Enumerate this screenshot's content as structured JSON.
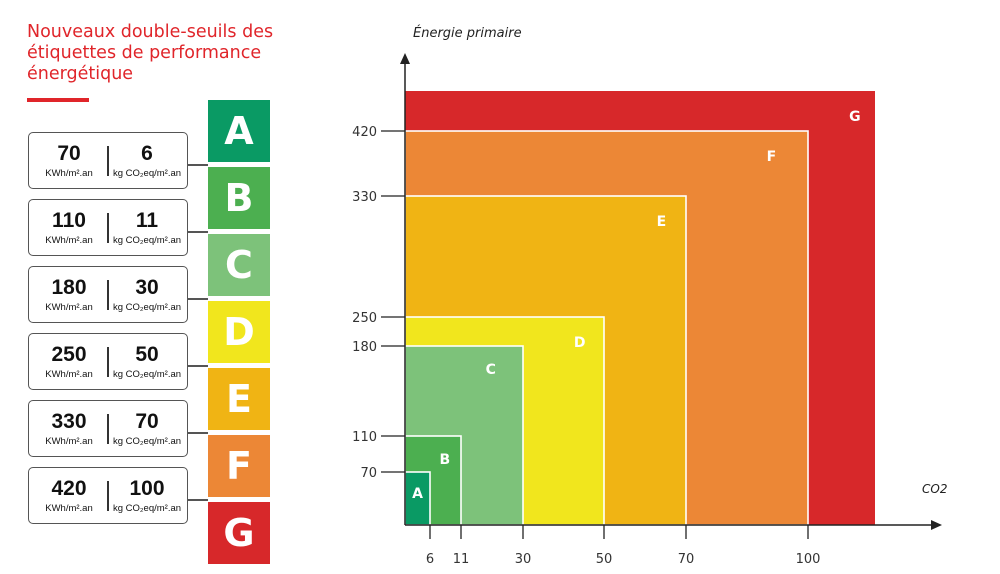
{
  "title": "Nouveaux double-seuils des étiquettes de performance énergétique",
  "colors": {
    "accent": "#e0252a",
    "A": "#0a9a64",
    "B": "#4caf50",
    "C": "#7dc27a",
    "D": "#f1e61d",
    "E": "#f0b414",
    "F": "#ec8736",
    "G": "#d7282a"
  },
  "grades": [
    "A",
    "B",
    "C",
    "D",
    "E",
    "F",
    "G"
  ],
  "thresholds": [
    {
      "energy": "70",
      "energy_unit": "KWh/m².an",
      "co2": "6",
      "co2_unit": "kg CO₂eq/m².an"
    },
    {
      "energy": "110",
      "energy_unit": "KWh/m².an",
      "co2": "11",
      "co2_unit": "kg CO₂eq/m².an"
    },
    {
      "energy": "180",
      "energy_unit": "KWh/m².an",
      "co2": "30",
      "co2_unit": "kg CO₂eq/m².an"
    },
    {
      "energy": "250",
      "energy_unit": "KWh/m².an",
      "co2": "50",
      "co2_unit": "kg CO₂eq/m².an"
    },
    {
      "energy": "330",
      "energy_unit": "KWh/m².an",
      "co2": "70",
      "co2_unit": "kg CO₂eq/m².an"
    },
    {
      "energy": "420",
      "energy_unit": "KWh/m².an",
      "co2": "100",
      "co2_unit": "kg CO₂eq/m².an"
    }
  ],
  "chart_data": {
    "type": "area",
    "ylabel": "Énergie primaire",
    "xlabel": "CO2",
    "x_ticks": [
      6,
      11,
      30,
      50,
      70,
      100
    ],
    "y_ticks": [
      70,
      110,
      180,
      250,
      330,
      420
    ],
    "classes": [
      {
        "label": "A",
        "co2_max": 6,
        "energy_max": 70
      },
      {
        "label": "B",
        "co2_max": 11,
        "energy_max": 110
      },
      {
        "label": "C",
        "co2_max": 30,
        "energy_max": 180
      },
      {
        "label": "D",
        "co2_max": 50,
        "energy_max": 250
      },
      {
        "label": "E",
        "co2_max": 70,
        "energy_max": 330
      },
      {
        "label": "F",
        "co2_max": 100,
        "energy_max": 420
      },
      {
        "label": "G",
        "co2_max": null,
        "energy_max": null
      }
    ]
  }
}
